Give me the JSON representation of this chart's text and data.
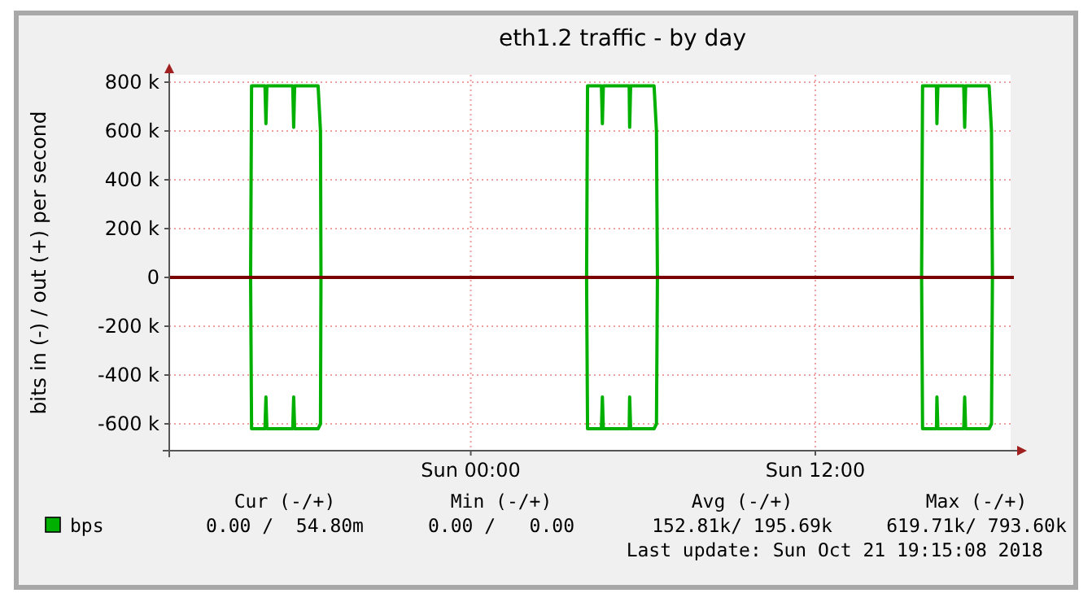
{
  "chart_data": {
    "type": "line",
    "title": "eth1.2 traffic - by day",
    "ylabel": "bits in (-) / out (+) per second",
    "xlim": [
      "2018-10-20T13:30",
      "2018-10-21T18:48"
    ],
    "xticks": [
      {
        "value": "2018-10-21T00:00",
        "label": "Sun 00:00"
      },
      {
        "value": "2018-10-21T12:00",
        "label": "Sun 12:00"
      }
    ],
    "ylim": [
      -710000,
      830000
    ],
    "yticks": [
      {
        "value": -600000,
        "label": "-600 k"
      },
      {
        "value": -400000,
        "label": "-400 k"
      },
      {
        "value": -200000,
        "label": "-200 k"
      },
      0,
      {
        "value": 200000,
        "label": "200 k"
      },
      {
        "value": 400000,
        "label": "400 k"
      },
      {
        "value": 600000,
        "label": "600 k"
      },
      {
        "value": 800000,
        "label": "800 k"
      }
    ],
    "grid": true,
    "legend": "bottom left",
    "line_style": "solid",
    "marker": "none",
    "ref_lines": [
      {
        "axis": "y",
        "value": 0,
        "color": "#7a0000"
      }
    ],
    "series": [
      {
        "name": "bps",
        "color": "#00b000",
        "x": [
          "2018-10-20T13:30",
          "2018-10-20T16:20",
          "2018-10-20T16:22",
          "2018-10-20T16:50",
          "2018-10-20T16:52",
          "2018-10-20T16:54",
          "2018-10-20T17:48",
          "2018-10-20T17:50",
          "2018-10-20T17:52",
          "2018-10-20T18:41",
          "2018-10-20T18:46",
          "2018-10-20T18:47",
          "2018-10-21T04:02",
          "2018-10-21T04:04",
          "2018-10-21T04:33",
          "2018-10-21T04:35",
          "2018-10-21T04:37",
          "2018-10-21T05:31",
          "2018-10-21T05:32",
          "2018-10-21T05:34",
          "2018-10-21T06:23",
          "2018-10-21T06:28",
          "2018-10-21T06:30",
          "2018-10-21T15:42",
          "2018-10-21T15:44",
          "2018-10-21T16:13",
          "2018-10-21T16:14",
          "2018-10-21T16:16",
          "2018-10-21T17:10",
          "2018-10-21T17:12",
          "2018-10-21T17:14",
          "2018-10-21T18:03",
          "2018-10-21T18:08",
          "2018-10-21T18:10",
          "2018-10-21T18:42"
        ],
        "values": [
          0,
          0,
          785000,
          785000,
          630000,
          785000,
          785000,
          615000,
          785000,
          785000,
          600000,
          0,
          0,
          785000,
          785000,
          630000,
          785000,
          785000,
          615000,
          785000,
          785000,
          600000,
          0,
          0,
          785000,
          785000,
          630000,
          785000,
          785000,
          615000,
          785000,
          785000,
          600000,
          0,
          0
        ]
      },
      {
        "color": "#00b000",
        "x": [
          "2018-10-20T13:30",
          "2018-10-20T16:20",
          "2018-10-20T16:22",
          "2018-10-20T16:50",
          "2018-10-20T16:52",
          "2018-10-20T16:54",
          "2018-10-20T17:48",
          "2018-10-20T17:50",
          "2018-10-20T17:52",
          "2018-10-20T18:41",
          "2018-10-20T18:46",
          "2018-10-20T18:47",
          "2018-10-21T04:02",
          "2018-10-21T04:04",
          "2018-10-21T04:33",
          "2018-10-21T04:35",
          "2018-10-21T04:37",
          "2018-10-21T05:31",
          "2018-10-21T05:32",
          "2018-10-21T05:34",
          "2018-10-21T06:23",
          "2018-10-21T06:28",
          "2018-10-21T06:30",
          "2018-10-21T15:42",
          "2018-10-21T15:44",
          "2018-10-21T16:13",
          "2018-10-21T16:14",
          "2018-10-21T16:16",
          "2018-10-21T17:10",
          "2018-10-21T17:12",
          "2018-10-21T17:14",
          "2018-10-21T18:03",
          "2018-10-21T18:08",
          "2018-10-21T18:10",
          "2018-10-21T18:42"
        ],
        "values": [
          0,
          0,
          -620000,
          -620000,
          -490000,
          -620000,
          -620000,
          -490000,
          -620000,
          -620000,
          -600000,
          0,
          0,
          -620000,
          -620000,
          -490000,
          -620000,
          -620000,
          -490000,
          -620000,
          -620000,
          -600000,
          0,
          0,
          -620000,
          -620000,
          -490000,
          -620000,
          -620000,
          -490000,
          -620000,
          -620000,
          -600000,
          0,
          0
        ]
      }
    ],
    "annotations": [
      "Cur (-/+)",
      "Min (-/+)",
      "Avg (-/+)",
      "Max (-/+)",
      "0.00 /  54.80m",
      "0.00 /   0.00",
      "152.81k/ 195.69k",
      "619.71k/ 793.60k",
      "Last update: Sun Oct 21 19:15:08 2018"
    ]
  }
}
